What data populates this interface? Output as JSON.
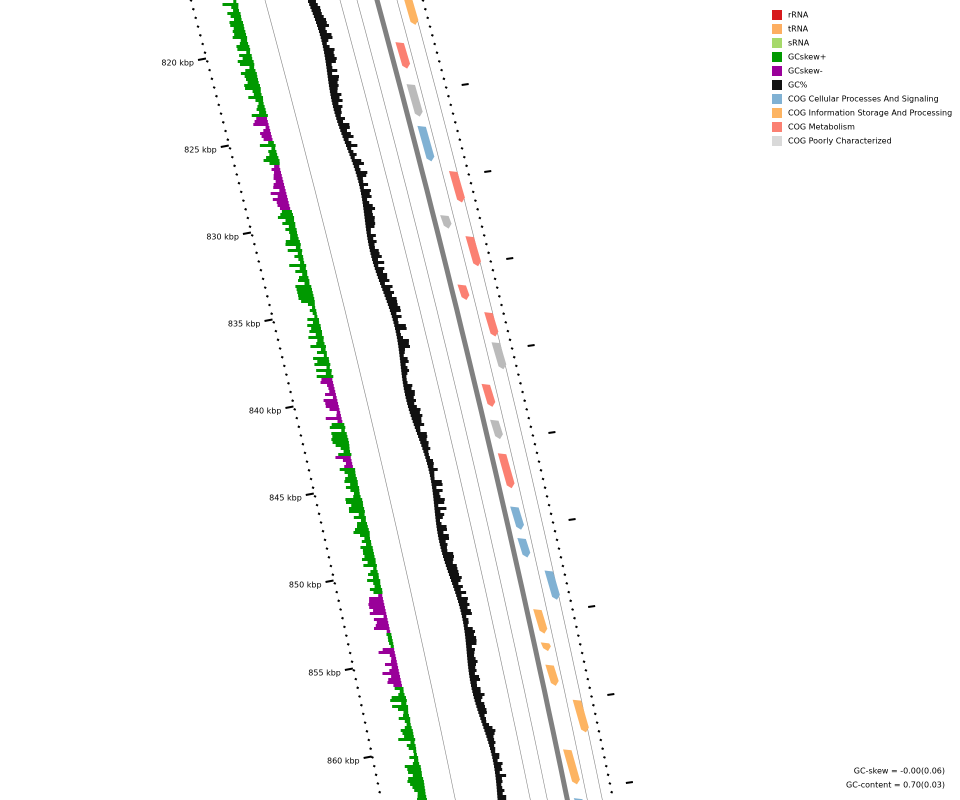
{
  "ticks": [
    "820 kbp",
    "825 kbp",
    "830 kbp",
    "835 kbp",
    "840 kbp",
    "845 kbp",
    "850 kbp",
    "855 kbp",
    "860 kbp"
  ],
  "legend": [
    {
      "label": "rRNA",
      "color": "#d7191c"
    },
    {
      "label": "tRNA",
      "color": "#fdae61"
    },
    {
      "label": "sRNA",
      "color": "#a6d96a"
    },
    {
      "label": "GCskew+",
      "color": "#009900"
    },
    {
      "label": "GCskew-",
      "color": "#990099"
    },
    {
      "label": "GC%",
      "color": "#111111"
    },
    {
      "label": "COG Cellular Processes And Signaling",
      "color": "#80b1d3"
    },
    {
      "label": "COG Information Storage And Processing",
      "color": "#fdb462"
    },
    {
      "label": "COG Metabolism",
      "color": "#fb8072"
    },
    {
      "label": "COG Poorly Characterized",
      "color": "#d9d9d9"
    }
  ],
  "footer": [
    "GC-skew = -0.00(0.06)",
    "GC-content = 0.70(0.03)"
  ]
}
